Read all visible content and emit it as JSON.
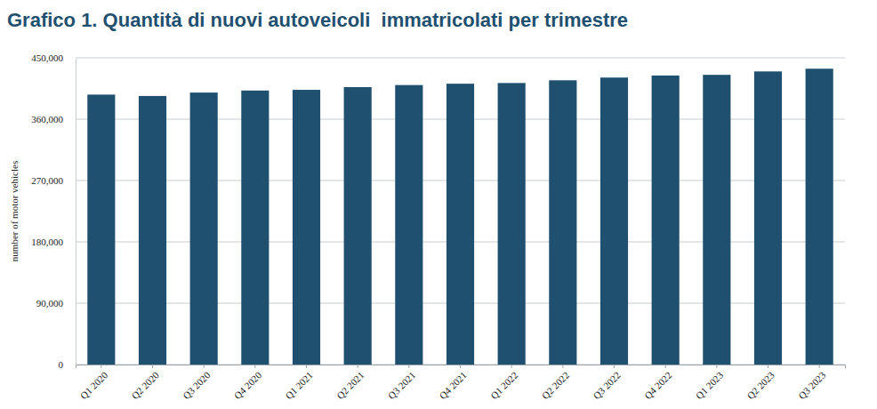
{
  "chart_data": {
    "type": "bar",
    "title": "Grafico 1. Quantità di nuovi autoveicoli  immatricolati per trimestre",
    "y_label": "number of motor vehicles",
    "categories": [
      "Q1 2020",
      "Q2 2020",
      "Q3 2020",
      "Q4 2020",
      "Q1 2021",
      "Q2 2021",
      "Q3 2021",
      "Q4 2021",
      "Q1 2022",
      "Q2 2022",
      "Q3 2022",
      "Q4 2022",
      "Q1 2023",
      "Q2 2023",
      "Q3 2023"
    ],
    "values": [
      396000,
      394000,
      399000,
      402000,
      403000,
      407000,
      410000,
      412000,
      413000,
      417000,
      421000,
      424000,
      425000,
      430000,
      434000
    ],
    "color": "#1f5070",
    "ylim": [
      0,
      450000
    ],
    "yticks": [
      0,
      {
        "value": 90000,
        "label": "90,000"
      },
      {
        "value": 180000,
        "label": "180,000"
      },
      {
        "value": 270000,
        "label": "270,000"
      },
      {
        "value": 360000,
        "label": "360,000"
      },
      {
        "value": 450000,
        "label": "450,000"
      }
    ],
    "grid": true
  }
}
